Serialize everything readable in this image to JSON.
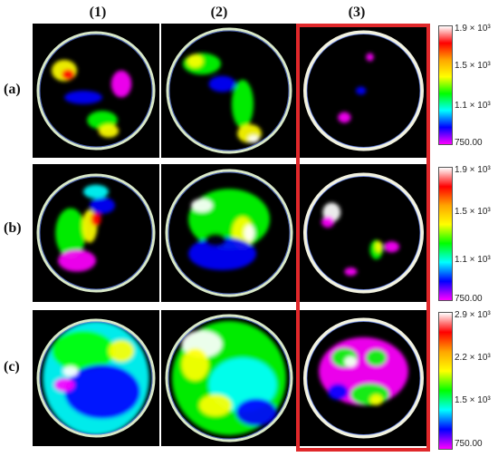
{
  "columns": [
    "(1)",
    "(2)",
    "(3)"
  ],
  "rows": [
    "(a)",
    "(b)",
    "(c)"
  ],
  "colorbars": [
    {
      "max": "1.9 × 10³",
      "mid1": "1.5 × 10³",
      "mid2": "1.1 × 10³",
      "min": "750.00"
    },
    {
      "max": "1.9 × 10³",
      "mid1": "1.5 × 10³",
      "mid2": "1.1 × 10³",
      "min": "750.00"
    },
    {
      "max": "2.9 × 10³",
      "mid1": "2.2 × 10³",
      "mid2": "1.5 × 10³",
      "min": "750.00"
    }
  ],
  "colors": {
    "highlight": "#e0282b",
    "ramp": [
      "#ffffff",
      "#ff0000",
      "#ffa500",
      "#ffff00",
      "#00ff00",
      "#00ffff",
      "#0000ff",
      "#ff00ff"
    ]
  }
}
